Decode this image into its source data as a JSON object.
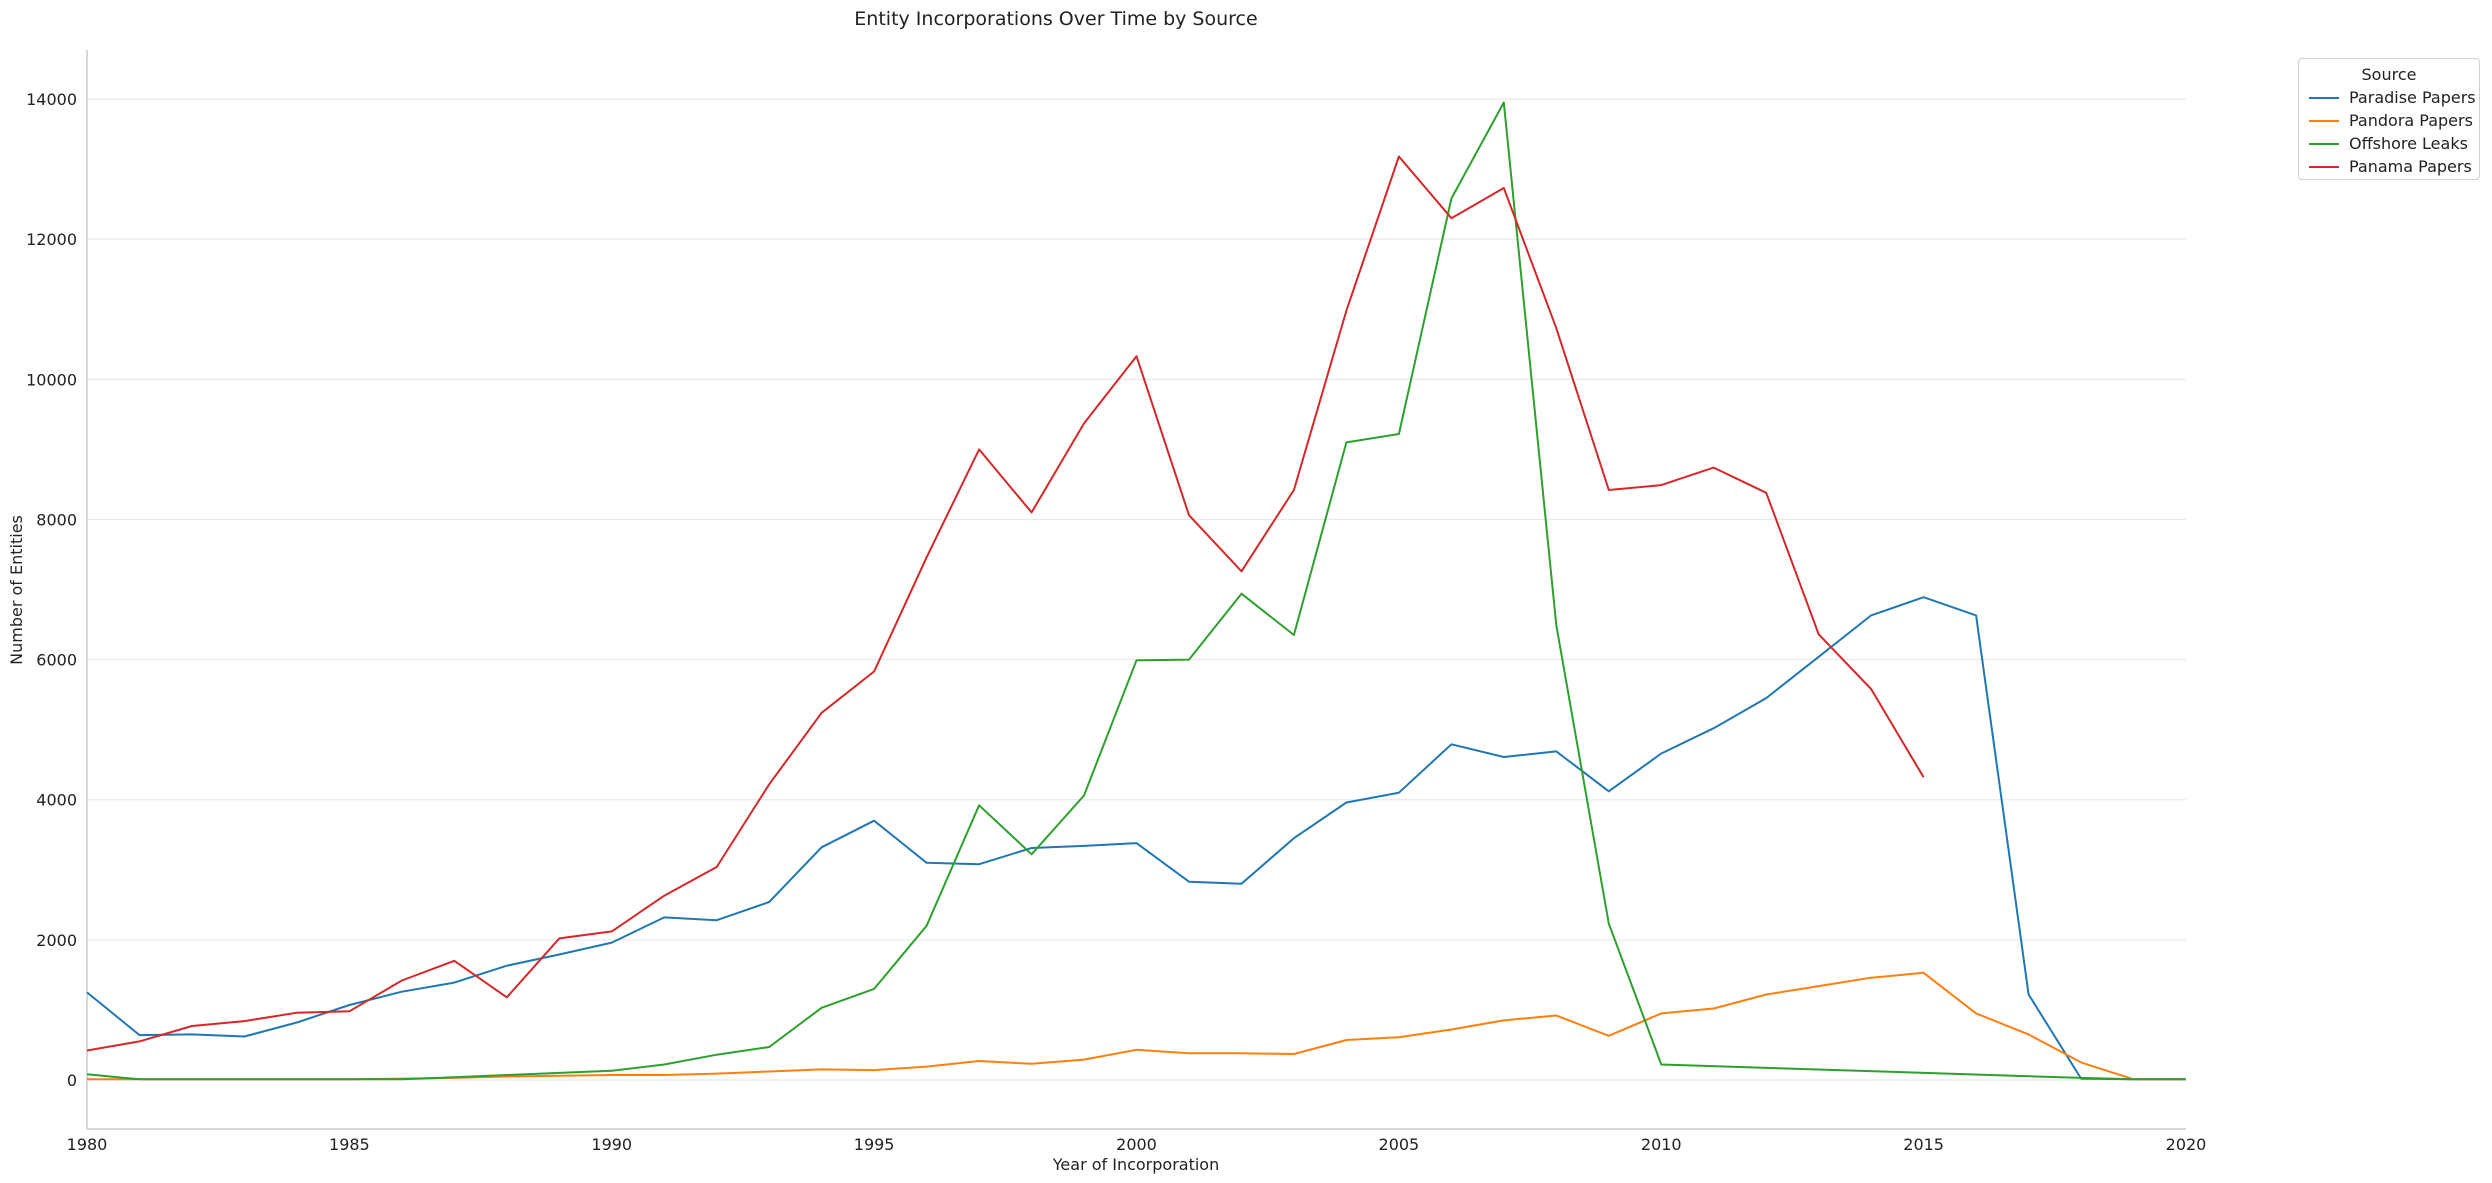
{
  "chart_data": {
    "type": "line",
    "title": "Entity Incorporations Over Time by Source",
    "xlabel": "Year of Incorporation",
    "ylabel": "Number of Entities",
    "xlim": [
      1980,
      2020
    ],
    "ylim": [
      -700,
      14700
    ],
    "x_ticks": [
      1980,
      1985,
      1990,
      1995,
      2000,
      2005,
      2010,
      2015,
      2020
    ],
    "y_ticks": [
      0,
      2000,
      4000,
      6000,
      8000,
      10000,
      12000,
      14000
    ],
    "grid": "horizontal",
    "legend": {
      "title": "Source",
      "placement": "outside top-right"
    },
    "series": [
      {
        "name": "Paradise Papers",
        "color": "#1f77b4",
        "x": [
          1980,
          1981,
          1982,
          1983,
          1984,
          1985,
          1986,
          1987,
          1988,
          1989,
          1990,
          1991,
          1992,
          1993,
          1994,
          1995,
          1996,
          1997,
          1998,
          1999,
          2000,
          2001,
          2002,
          2003,
          2004,
          2005,
          2006,
          2007,
          2008,
          2009,
          2010,
          2011,
          2012,
          2013,
          2014,
          2015,
          2016,
          2017,
          2018,
          2019,
          2020
        ],
        "y": [
          1250,
          640,
          650,
          620,
          820,
          1070,
          1260,
          1390,
          1630,
          1790,
          1960,
          2320,
          2280,
          2540,
          3320,
          3700,
          3100,
          3080,
          3310,
          3340,
          3380,
          2830,
          2800,
          3450,
          3960,
          4100,
          4790,
          4610,
          4690,
          4120,
          4660,
          5020,
          5450,
          6040,
          6630,
          6890,
          6630,
          1220,
          20,
          10,
          10
        ]
      },
      {
        "name": "Pandora Papers",
        "color": "#ff7f0e",
        "x": [
          1980,
          1981,
          1982,
          1983,
          1984,
          1985,
          1986,
          1987,
          1988,
          1989,
          1990,
          1991,
          1992,
          1993,
          1994,
          1995,
          1996,
          1997,
          1998,
          1999,
          2000,
          2001,
          2002,
          2003,
          2004,
          2005,
          2006,
          2007,
          2008,
          2009,
          2010,
          2011,
          2012,
          2013,
          2014,
          2015,
          2016,
          2017,
          2018,
          2019,
          2020
        ],
        "y": [
          10,
          10,
          10,
          10,
          10,
          10,
          20,
          30,
          50,
          60,
          70,
          70,
          90,
          120,
          150,
          140,
          190,
          270,
          230,
          290,
          430,
          380,
          380,
          370,
          570,
          610,
          720,
          850,
          920,
          630,
          950,
          1020,
          1220,
          1340,
          1460,
          1530,
          950,
          650,
          250,
          10,
          10
        ]
      },
      {
        "name": "Offshore Leaks",
        "color": "#2ca02c",
        "x": [
          1980,
          1981,
          1982,
          1983,
          1984,
          1985,
          1986,
          1987,
          1988,
          1989,
          1990,
          1991,
          1992,
          1993,
          1994,
          1995,
          1996,
          1997,
          1998,
          1999,
          2000,
          2001,
          2002,
          2003,
          2004,
          2005,
          2006,
          2007,
          2008,
          2009,
          2010,
          2018,
          2019,
          2020
        ],
        "y": [
          80,
          10,
          10,
          10,
          10,
          10,
          10,
          40,
          70,
          100,
          130,
          220,
          360,
          470,
          1030,
          1300,
          2200,
          3920,
          3220,
          4060,
          5990,
          6000,
          6940,
          6350,
          9100,
          9220,
          12580,
          13950,
          6490,
          2230,
          220,
          30,
          10,
          10
        ]
      },
      {
        "name": "Panama Papers",
        "color": "#d62728",
        "x": [
          1980,
          1981,
          1982,
          1983,
          1984,
          1985,
          1986,
          1987,
          1988,
          1989,
          1990,
          1991,
          1992,
          1993,
          1994,
          1995,
          1996,
          1997,
          1998,
          1999,
          2000,
          2001,
          2002,
          2003,
          2004,
          2005,
          2006,
          2007,
          2008,
          2009,
          2010,
          2011,
          2012,
          2013,
          2014,
          2015
        ],
        "y": [
          420,
          550,
          770,
          840,
          960,
          980,
          1420,
          1700,
          1180,
          2020,
          2120,
          2630,
          3040,
          4220,
          5240,
          5830,
          7460,
          9000,
          8100,
          9370,
          10330,
          8060,
          7260,
          8420,
          10980,
          13180,
          12300,
          12730,
          10730,
          8420,
          8490,
          8740,
          8380,
          6360,
          5580,
          4320
        ]
      }
    ]
  }
}
